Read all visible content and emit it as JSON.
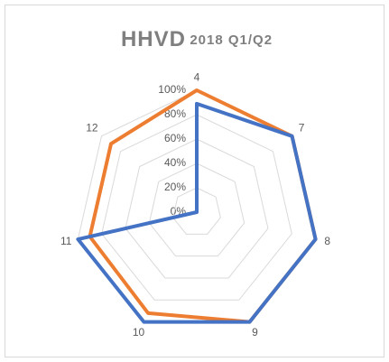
{
  "chart_data": {
    "type": "radar",
    "title": "HHVD",
    "subtitle": "2018 Q1/Q2",
    "categories": [
      "4",
      "7",
      "8",
      "9",
      "10",
      "11",
      "12"
    ],
    "series": [
      {
        "color": "#ed7d31",
        "values": [
          100,
          100,
          100,
          100,
          92,
          90,
          90
        ]
      },
      {
        "color": "#4472c4",
        "values": [
          89,
          100,
          100,
          100,
          100,
          100,
          0
        ]
      }
    ],
    "ylim": [
      0,
      100
    ],
    "yticks": [
      {
        "value": 0,
        "label": "0%"
      },
      {
        "value": 20,
        "label": "20%"
      },
      {
        "value": 40,
        "label": "40%"
      },
      {
        "value": 60,
        "label": "60%"
      },
      {
        "value": 80,
        "label": "80%"
      },
      {
        "value": 100,
        "label": "100%"
      }
    ],
    "grid": true
  }
}
